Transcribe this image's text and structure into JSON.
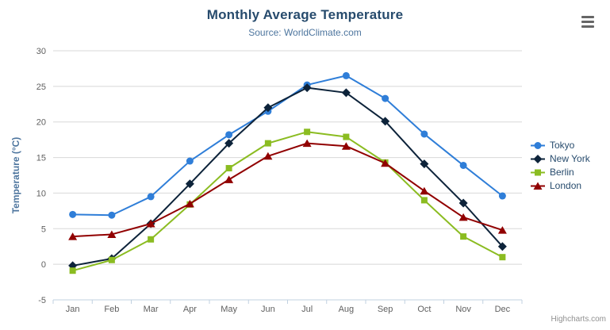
{
  "chart": {
    "credit_label": "Highcharts.com",
    "context_menu_icon": "hamburger-icon"
  },
  "chart_data": {
    "type": "line",
    "title": "Monthly Average Temperature",
    "subtitle": "Source: WorldClimate.com",
    "xlabel": "",
    "ylabel": "Temperature (°C)",
    "categories": [
      "Jan",
      "Feb",
      "Mar",
      "Apr",
      "May",
      "Jun",
      "Jul",
      "Aug",
      "Sep",
      "Oct",
      "Nov",
      "Dec"
    ],
    "ylim": [
      -5,
      30
    ],
    "ytick_step": 5,
    "grid": true,
    "legend_position": "right",
    "series": [
      {
        "name": "Tokyo",
        "color": "#2f7ed8",
        "marker": "circle",
        "values": [
          7.0,
          6.9,
          9.5,
          14.5,
          18.2,
          21.5,
          25.2,
          26.5,
          23.3,
          18.3,
          13.9,
          9.6
        ]
      },
      {
        "name": "New York",
        "color": "#0d233a",
        "marker": "diamond",
        "values": [
          -0.2,
          0.8,
          5.7,
          11.3,
          17.0,
          22.0,
          24.8,
          24.1,
          20.1,
          14.1,
          8.6,
          2.5
        ]
      },
      {
        "name": "Berlin",
        "color": "#8bbc21",
        "marker": "square",
        "values": [
          -0.9,
          0.6,
          3.5,
          8.4,
          13.5,
          17.0,
          18.6,
          17.9,
          14.3,
          9.0,
          3.9,
          1.0
        ]
      },
      {
        "name": "London",
        "color": "#910000",
        "marker": "triangle",
        "values": [
          3.9,
          4.2,
          5.7,
          8.5,
          11.9,
          15.2,
          17.0,
          16.6,
          14.2,
          10.3,
          6.6,
          4.8
        ]
      }
    ]
  },
  "palette": {
    "title_text": "#274b6d",
    "subtitle_text": "#4d759e",
    "axis_title_text": "#4d759e",
    "tick_label_text": "#606060",
    "gridline": "#d8d8d8",
    "axis_line": "#c0d0e0",
    "legend_text": "#274b6d",
    "credit_text": "#909090",
    "menu_icon": "#666666",
    "background": "#ffffff"
  }
}
